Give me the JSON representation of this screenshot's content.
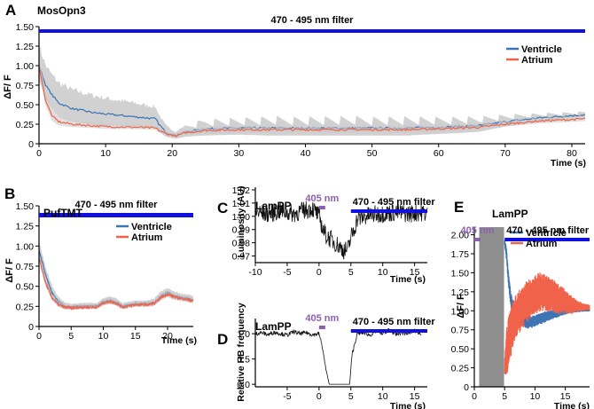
{
  "colors": {
    "ventricle": "#3d74b5",
    "atrium": "#f0624a",
    "band": "#c9c9c9",
    "filter_bar": "#1010e0",
    "uv_bar": "#8e5fb0",
    "dark_block": "#8f8f8f",
    "trace": "#111111"
  },
  "chart_data": [
    {
      "id": "A",
      "panel_label": "A",
      "type": "line",
      "title": "MosOpn3",
      "xlabel": "Time (s)",
      "ylabel": "ΔF/ F",
      "xlim": [
        0,
        82
      ],
      "ylim": [
        0,
        1.5
      ],
      "xticks": [
        0,
        10,
        20,
        30,
        40,
        50,
        60,
        70,
        80
      ],
      "yticks": [
        0,
        0.25,
        0.5,
        0.75,
        1.0,
        1.25,
        1.5
      ],
      "ytick_labels": [
        "0",
        "0.25",
        "0.50",
        "0.75",
        "1.00",
        "1.25",
        "1.50"
      ],
      "filter_bars": [
        {
          "label": "470 - 495 nm filter",
          "x0": 0,
          "x1": 82,
          "y": 1.43
        }
      ],
      "legend": {
        "placement": "top-right",
        "entries": [
          "Ventricle",
          "Atrium"
        ]
      },
      "series": [
        {
          "name": "Ventricle",
          "x": [
            0,
            1,
            2,
            3,
            5,
            8,
            10,
            15,
            17.5,
            18,
            19,
            20.5,
            22,
            25,
            30,
            35,
            40,
            45,
            50,
            55,
            60,
            63,
            66,
            70,
            75,
            80,
            82
          ],
          "y": [
            1.0,
            0.75,
            0.62,
            0.52,
            0.45,
            0.4,
            0.38,
            0.34,
            0.32,
            0.25,
            0.15,
            0.1,
            0.15,
            0.19,
            0.2,
            0.2,
            0.2,
            0.2,
            0.2,
            0.2,
            0.21,
            0.22,
            0.23,
            0.28,
            0.33,
            0.36,
            0.37
          ],
          "band": [
            0.3,
            0.3,
            0.3,
            0.3,
            0.28,
            0.26,
            0.24,
            0.2,
            0.18,
            0.15,
            0.1,
            0.06,
            0.1,
            0.14,
            0.14,
            0.16,
            0.16,
            0.16,
            0.16,
            0.16,
            0.14,
            0.14,
            0.13,
            0.1,
            0.07,
            0.05,
            0.05
          ]
        },
        {
          "name": "Atrium",
          "x": [
            0,
            1,
            2,
            3,
            5,
            8,
            10,
            15,
            17.5,
            18,
            19,
            20.5,
            22,
            25,
            30,
            35,
            40,
            45,
            50,
            55,
            60,
            63,
            66,
            70,
            75,
            80,
            82
          ],
          "y": [
            1.0,
            0.55,
            0.35,
            0.28,
            0.25,
            0.23,
            0.22,
            0.21,
            0.2,
            0.17,
            0.13,
            0.1,
            0.14,
            0.17,
            0.18,
            0.18,
            0.18,
            0.18,
            0.18,
            0.18,
            0.19,
            0.2,
            0.21,
            0.25,
            0.29,
            0.31,
            0.32
          ],
          "band": [
            0.12,
            0.12,
            0.1,
            0.08,
            0.06,
            0.05,
            0.05,
            0.04,
            0.04,
            0.04,
            0.03,
            0.03,
            0.05,
            0.06,
            0.06,
            0.06,
            0.06,
            0.06,
            0.06,
            0.06,
            0.06,
            0.06,
            0.06,
            0.05,
            0.05,
            0.05,
            0.05
          ]
        }
      ]
    },
    {
      "id": "B",
      "panel_label": "B",
      "type": "line",
      "title": "PufTMT",
      "xlabel": "Time (s)",
      "ylabel": "ΔF/ F",
      "xlim": [
        0,
        24
      ],
      "ylim": [
        0,
        1.5
      ],
      "xticks": [
        0,
        5,
        10,
        15,
        20
      ],
      "yticks": [
        0,
        0.25,
        0.5,
        0.75,
        1.0,
        1.25,
        1.5
      ],
      "ytick_labels": [
        "0",
        "0.25",
        "0.50",
        "0.75",
        "1.00",
        "1.25",
        "1.50"
      ],
      "filter_bars": [
        {
          "label": "470 - 495 nm filter",
          "x0": 0,
          "x1": 24,
          "y": 1.5
        }
      ],
      "legend": {
        "placement": "top-right",
        "entries": [
          "Ventricle",
          "Atrium"
        ]
      },
      "series": [
        {
          "name": "Ventricle",
          "x": [
            0,
            1,
            2,
            3,
            4,
            5,
            7,
            9,
            10,
            11,
            12,
            13,
            15,
            17,
            18,
            19,
            20,
            21,
            22,
            24
          ],
          "y": [
            0.95,
            0.65,
            0.42,
            0.3,
            0.25,
            0.24,
            0.25,
            0.25,
            0.3,
            0.32,
            0.3,
            0.25,
            0.28,
            0.28,
            0.3,
            0.38,
            0.42,
            0.38,
            0.36,
            0.33
          ],
          "band": [
            0.12,
            0.12,
            0.1,
            0.08,
            0.06,
            0.05,
            0.05,
            0.05,
            0.06,
            0.06,
            0.06,
            0.05,
            0.05,
            0.05,
            0.06,
            0.07,
            0.07,
            0.07,
            0.06,
            0.06
          ]
        },
        {
          "name": "Atrium",
          "x": [
            0,
            1,
            2,
            3,
            4,
            5,
            7,
            9,
            10,
            11,
            12,
            13,
            15,
            17,
            18,
            19,
            20,
            21,
            22,
            24
          ],
          "y": [
            0.85,
            0.55,
            0.36,
            0.27,
            0.24,
            0.23,
            0.24,
            0.24,
            0.29,
            0.31,
            0.29,
            0.24,
            0.27,
            0.27,
            0.29,
            0.36,
            0.4,
            0.37,
            0.35,
            0.32
          ],
          "band": [
            0.08,
            0.08,
            0.06,
            0.05,
            0.04,
            0.04,
            0.04,
            0.04,
            0.05,
            0.05,
            0.05,
            0.04,
            0.04,
            0.04,
            0.05,
            0.06,
            0.06,
            0.06,
            0.05,
            0.05
          ]
        }
      ]
    },
    {
      "id": "C",
      "panel_label": "C",
      "type": "line",
      "title": "LamPP",
      "xlabel": "Time (s)",
      "ylabel": "Luminosity (AU)",
      "xlim": [
        -10,
        17
      ],
      "ylim": [
        0.965,
        1.022
      ],
      "xticks": [
        -10,
        -5,
        0,
        5,
        10,
        15
      ],
      "yticks": [
        0.97,
        0.98,
        0.99,
        1.0,
        1.01,
        1.02
      ],
      "ytick_labels": [
        "0.97",
        "0.98",
        "0.99",
        "1.00",
        "1.01",
        "1.02"
      ],
      "stim_bars": [
        {
          "label": "405 nm",
          "x0": 0,
          "x1": 0.8
        }
      ],
      "filter_bars": [
        {
          "label": "470 - 495 nm filter",
          "x0": 5,
          "x1": 17
        }
      ],
      "series": [
        {
          "x": [
            -10,
            -8,
            -6,
            -4,
            -2,
            -1,
            0,
            0.5,
            1,
            2,
            3,
            4,
            4.5,
            5,
            5.5,
            6,
            8,
            10,
            12,
            14,
            16,
            17
          ],
          "y": [
            1.003,
            1.002,
            1.004,
            1.002,
            1.005,
            1.006,
            1.0,
            0.992,
            0.986,
            0.982,
            0.978,
            0.974,
            0.975,
            0.984,
            0.99,
            0.998,
            1.001,
            1.002,
            1.003,
            1.002,
            1.003,
            1.002
          ]
        }
      ]
    },
    {
      "id": "D",
      "panel_label": "D",
      "type": "line",
      "title": "LamPP",
      "xlabel": "Time (s)",
      "ylabel": "Relative HB frequency",
      "xlim": [
        -10,
        17
      ],
      "ylim": [
        -0.05,
        1.3
      ],
      "xticks": [
        -5,
        0,
        5,
        10,
        15
      ],
      "yticks": [
        0,
        0.5,
        1.0
      ],
      "ytick_labels": [
        "0.0",
        "0.5",
        "1.0"
      ],
      "stim_bars": [
        {
          "label": "405 nm",
          "x0": 0,
          "x1": 0.8
        }
      ],
      "filter_bars": [
        {
          "label": "470 - 495 nm filter",
          "x0": 5,
          "x1": 17
        }
      ],
      "series": [
        {
          "x": [
            -10,
            -9,
            -8,
            -7,
            -6,
            -5,
            -4,
            -3,
            -2,
            -1,
            0,
            0.5,
            1,
            1.6,
            2,
            3,
            4,
            4.8,
            5.2,
            6,
            7,
            8,
            9,
            10,
            11,
            12,
            13,
            14,
            15,
            16
          ],
          "y": [
            1.0,
            1.02,
            0.98,
            1.03,
            1.0,
            0.97,
            1.04,
            1.0,
            1.02,
            0.98,
            1.0,
            0.75,
            0.35,
            0.0,
            0.0,
            0.0,
            0.0,
            0.0,
            0.6,
            1.0,
            1.02,
            0.97,
            1.05,
            1.0,
            1.08,
            0.98,
            1.02,
            1.0,
            1.06,
            1.0
          ]
        }
      ]
    },
    {
      "id": "E",
      "panel_label": "E",
      "type": "line",
      "title": "LamPP",
      "xlabel": "Time (s)",
      "ylabel": "ΔF/ F",
      "xlim": [
        0,
        19
      ],
      "ylim": [
        0,
        2.1
      ],
      "xticks": [
        0,
        5,
        10,
        15
      ],
      "yticks": [
        0,
        0.25,
        0.5,
        0.75,
        1.0,
        1.25,
        1.5,
        1.75,
        2.0
      ],
      "ytick_labels": [
        "0",
        "0.25",
        "0.50",
        "0.75",
        "1.00",
        "1.25",
        "1.50",
        "1.75",
        "2.00"
      ],
      "stim_bars": [
        {
          "label": "405 nm",
          "x0": 0,
          "x1": 0.8
        }
      ],
      "filter_bars": [
        {
          "label": "470 - 495 nm filter",
          "x0": 5,
          "x1": 19
        }
      ],
      "dark_period": [
        0.8,
        4.9
      ],
      "legend": {
        "placement": "top-right",
        "entries": [
          "Ventricle",
          "Atrium"
        ]
      },
      "series": [
        {
          "name": "Ventricle",
          "x": [
            5.0,
            5.3,
            5.6,
            6.0,
            6.5,
            7,
            8,
            9,
            10,
            11,
            12,
            13,
            14,
            15,
            16,
            17,
            18,
            19
          ],
          "y": [
            1.9,
            1.75,
            1.45,
            1.15,
            1.0,
            0.95,
            0.88,
            0.85,
            0.87,
            0.9,
            0.93,
            0.95,
            0.97,
            0.99,
            1.0,
            1.01,
            1.01,
            1.01
          ],
          "amp": [
            0.05,
            0.08,
            0.1,
            0.1,
            0.1,
            0.1,
            0.09,
            0.09,
            0.08,
            0.08,
            0.07,
            0.06,
            0.05,
            0.04,
            0.03,
            0.03,
            0.02,
            0.02
          ]
        },
        {
          "name": "Atrium",
          "x": [
            5.0,
            5.3,
            5.6,
            6.0,
            6.5,
            7,
            8,
            9,
            10,
            11,
            12,
            13,
            14,
            15,
            16,
            17,
            18,
            19
          ],
          "y": [
            0.25,
            0.45,
            0.55,
            0.7,
            0.85,
            0.95,
            1.05,
            1.15,
            1.2,
            1.25,
            1.22,
            1.2,
            1.15,
            1.12,
            1.08,
            1.06,
            1.05,
            1.04
          ],
          "amp": [
            0.1,
            0.3,
            0.35,
            0.35,
            0.3,
            0.3,
            0.28,
            0.28,
            0.28,
            0.26,
            0.24,
            0.22,
            0.2,
            0.16,
            0.12,
            0.08,
            0.05,
            0.04
          ]
        }
      ]
    }
  ]
}
